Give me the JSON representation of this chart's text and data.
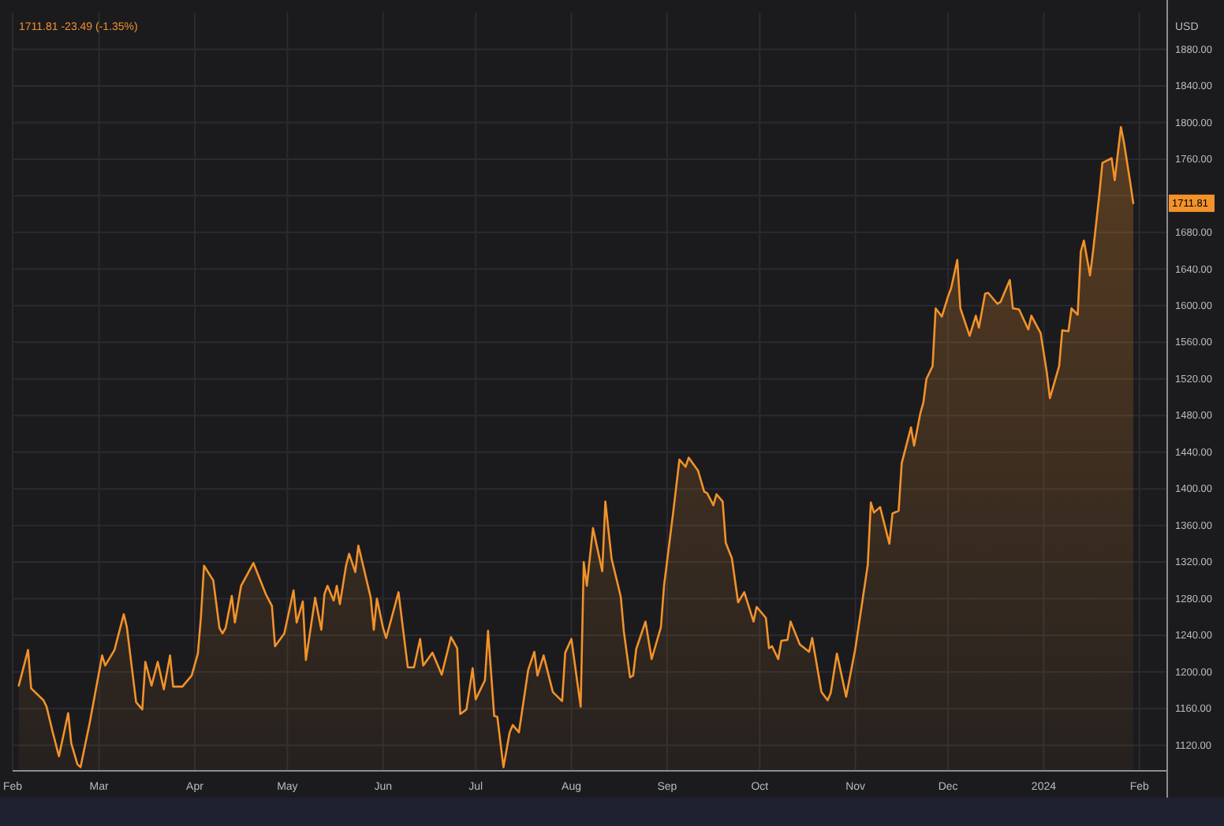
{
  "chart_data": {
    "type": "area",
    "title": "1711.81  -23.49 (-1.35%)",
    "ylabel": "USD",
    "color": "#f2922a",
    "grid": true,
    "annotations": [
      "1711.81"
    ],
    "xlim": [
      "2023-02-01",
      "2024-02-10"
    ],
    "xticks": [
      {
        "value": "2023-02-01",
        "label": "Feb"
      },
      {
        "value": "2023-03-01",
        "label": "Mar"
      },
      {
        "value": "2023-04-01",
        "label": "Apr"
      },
      {
        "value": "2023-05-01",
        "label": "May"
      },
      {
        "value": "2023-06-01",
        "label": "Jun"
      },
      {
        "value": "2023-07-01",
        "label": "Jul"
      },
      {
        "value": "2023-08-01",
        "label": "Aug"
      },
      {
        "value": "2023-09-01",
        "label": "Sep"
      },
      {
        "value": "2023-10-01",
        "label": "Oct"
      },
      {
        "value": "2023-11-01",
        "label": "Nov"
      },
      {
        "value": "2023-12-01",
        "label": "Dec"
      },
      {
        "value": "2024-01-01",
        "label": "2024"
      },
      {
        "value": "2024-02-01",
        "label": "Feb"
      }
    ],
    "ylim": [
      1092,
      1920
    ],
    "yticks": [
      {
        "value": 1120,
        "label": "1120.00"
      },
      {
        "value": 1160,
        "label": "1160.00"
      },
      {
        "value": 1200,
        "label": "1200.00"
      },
      {
        "value": 1240,
        "label": "1240.00"
      },
      {
        "value": 1280,
        "label": "1280.00"
      },
      {
        "value": 1320,
        "label": "1320.00"
      },
      {
        "value": 1360,
        "label": "1360.00"
      },
      {
        "value": 1400,
        "label": "1400.00"
      },
      {
        "value": 1440,
        "label": "1440.00"
      },
      {
        "value": 1480,
        "label": "1480.00"
      },
      {
        "value": 1520,
        "label": "1520.00"
      },
      {
        "value": 1560,
        "label": "1560.00"
      },
      {
        "value": 1600,
        "label": "1600.00"
      },
      {
        "value": 1640,
        "label": "1640.00"
      },
      {
        "value": 1680,
        "label": "1680.00"
      },
      {
        "value": 1720,
        "label": null
      },
      {
        "value": 1760,
        "label": "1760.00"
      },
      {
        "value": 1800,
        "label": "1800.00"
      },
      {
        "value": 1840,
        "label": "1840.00"
      },
      {
        "value": 1880,
        "label": "1880.00"
      }
    ],
    "x": [
      "2023-02-03",
      "2023-02-06",
      "2023-02-07",
      "2023-02-11",
      "2023-02-12",
      "2023-02-14",
      "2023-02-16",
      "2023-02-19",
      "2023-02-20",
      "2023-02-22",
      "2023-02-23",
      "2023-02-26",
      "2023-03-02",
      "2023-03-03",
      "2023-03-06",
      "2023-03-09",
      "2023-03-10",
      "2023-03-13",
      "2023-03-15",
      "2023-03-16",
      "2023-03-18",
      "2023-03-20",
      "2023-03-22",
      "2023-03-24",
      "2023-03-25",
      "2023-03-28",
      "2023-03-31",
      "2023-04-02",
      "2023-04-03",
      "2023-04-04",
      "2023-04-07",
      "2023-04-09",
      "2023-04-10",
      "2023-04-11",
      "2023-04-13",
      "2023-04-14",
      "2023-04-16",
      "2023-04-20",
      "2023-04-24",
      "2023-04-26",
      "2023-04-27",
      "2023-04-30",
      "2023-05-03",
      "2023-05-04",
      "2023-05-06",
      "2023-05-07",
      "2023-05-10",
      "2023-05-12",
      "2023-05-13",
      "2023-05-14",
      "2023-05-16",
      "2023-05-17",
      "2023-05-18",
      "2023-05-20",
      "2023-05-21",
      "2023-05-23",
      "2023-05-24",
      "2023-05-28",
      "2023-05-29",
      "2023-05-30",
      "2023-06-01",
      "2023-06-02",
      "2023-06-06",
      "2023-06-09",
      "2023-06-11",
      "2023-06-13",
      "2023-06-14",
      "2023-06-17",
      "2023-06-20",
      "2023-06-23",
      "2023-06-25",
      "2023-06-26",
      "2023-06-28",
      "2023-06-30",
      "2023-07-01",
      "2023-07-04",
      "2023-07-05",
      "2023-07-07",
      "2023-07-08",
      "2023-07-10",
      "2023-07-12",
      "2023-07-13",
      "2023-07-15",
      "2023-07-18",
      "2023-07-20",
      "2023-07-21",
      "2023-07-23",
      "2023-07-26",
      "2023-07-29",
      "2023-07-30",
      "2023-08-01",
      "2023-08-04",
      "2023-08-05",
      "2023-08-06",
      "2023-08-08",
      "2023-08-11",
      "2023-08-12",
      "2023-08-14",
      "2023-08-17",
      "2023-08-18",
      "2023-08-20",
      "2023-08-21",
      "2023-08-22",
      "2023-08-25",
      "2023-08-27",
      "2023-08-30",
      "2023-08-31",
      "2023-09-03",
      "2023-09-05",
      "2023-09-07",
      "2023-09-08",
      "2023-09-11",
      "2023-09-13",
      "2023-09-14",
      "2023-09-16",
      "2023-09-17",
      "2023-09-19",
      "2023-09-20",
      "2023-09-22",
      "2023-09-24",
      "2023-09-26",
      "2023-09-29",
      "2023-09-30",
      "2023-10-03",
      "2023-10-04",
      "2023-10-05",
      "2023-10-07",
      "2023-10-08",
      "2023-10-10",
      "2023-10-11",
      "2023-10-14",
      "2023-10-17",
      "2023-10-18",
      "2023-10-21",
      "2023-10-23",
      "2023-10-24",
      "2023-10-26",
      "2023-10-29",
      "2023-11-01",
      "2023-11-05",
      "2023-11-06",
      "2023-11-07",
      "2023-11-09",
      "2023-11-12",
      "2023-11-13",
      "2023-11-15",
      "2023-11-16",
      "2023-11-19",
      "2023-11-20",
      "2023-11-22",
      "2023-11-23",
      "2023-11-24",
      "2023-11-26",
      "2023-11-27",
      "2023-11-29",
      "2023-12-01",
      "2023-12-02",
      "2023-12-04",
      "2023-12-05",
      "2023-12-08",
      "2023-12-10",
      "2023-12-11",
      "2023-12-13",
      "2023-12-14",
      "2023-12-17",
      "2023-12-18",
      "2023-12-21",
      "2023-12-22",
      "2023-12-24",
      "2023-12-27",
      "2023-12-28",
      "2023-12-31",
      "2024-01-02",
      "2024-01-03",
      "2024-01-06",
      "2024-01-07",
      "2024-01-09",
      "2024-01-10",
      "2024-01-12",
      "2024-01-13",
      "2024-01-14",
      "2024-01-16",
      "2024-01-17",
      "2024-01-19",
      "2024-01-20",
      "2024-01-23",
      "2024-01-24",
      "2024-01-26",
      "2024-01-27",
      "2024-01-29",
      "2024-01-30"
    ],
    "values": [
      1185,
      1224,
      1182,
      1169,
      1162,
      1134,
      1108,
      1155,
      1122,
      1099,
      1096,
      1145,
      1218,
      1207,
      1224,
      1263,
      1249,
      1167,
      1159,
      1211,
      1185,
      1211,
      1181,
      1218,
      1184,
      1184,
      1196,
      1220,
      1260,
      1316,
      1300,
      1248,
      1242,
      1248,
      1283,
      1254,
      1294,
      1319,
      1285,
      1272,
      1228,
      1242,
      1289,
      1254,
      1277,
      1213,
      1281,
      1246,
      1285,
      1294,
      1278,
      1294,
      1274,
      1316,
      1329,
      1309,
      1338,
      1281,
      1246,
      1280,
      1248,
      1237,
      1287,
      1205,
      1205,
      1236,
      1207,
      1221,
      1197,
      1238,
      1226,
      1154,
      1159,
      1204,
      1170,
      1191,
      1245,
      1152,
      1151,
      1096,
      1134,
      1142,
      1134,
      1202,
      1222,
      1196,
      1218,
      1178,
      1168,
      1221,
      1236,
      1162,
      1320,
      1294,
      1357,
      1310,
      1386,
      1324,
      1282,
      1244,
      1194,
      1196,
      1225,
      1255,
      1214,
      1249,
      1294,
      1375,
      1432,
      1424,
      1434,
      1420,
      1397,
      1395,
      1382,
      1394,
      1386,
      1341,
      1324,
      1276,
      1287,
      1255,
      1271,
      1259,
      1226,
      1228,
      1214,
      1234,
      1235,
      1255,
      1230,
      1222,
      1237,
      1178,
      1169,
      1177,
      1220,
      1173,
      1226,
      1317,
      1385,
      1374,
      1380,
      1340,
      1373,
      1376,
      1428,
      1467,
      1447,
      1482,
      1494,
      1520,
      1534,
      1597,
      1588,
      1610,
      1619,
      1650,
      1597,
      1567,
      1589,
      1576,
      1613,
      1614,
      1602,
      1604,
      1628,
      1597,
      1596,
      1574,
      1589,
      1570,
      1527,
      1499,
      1534,
      1573,
      1572,
      1597,
      1590,
      1659,
      1671,
      1633,
      1660,
      1721,
      1756,
      1761,
      1737,
      1795,
      1778,
      1735,
      1711.81
    ]
  }
}
